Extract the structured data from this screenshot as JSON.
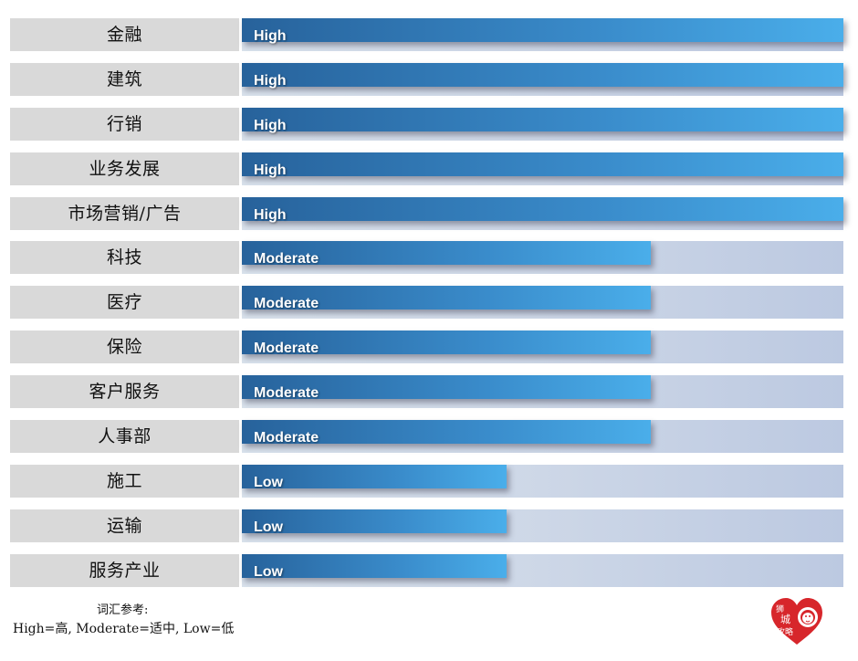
{
  "chart_data": {
    "type": "bar",
    "orientation": "horizontal",
    "title": "",
    "xlabel": "",
    "ylabel": "",
    "categories": [
      "金融",
      "建筑",
      "行销",
      "业务发展",
      "市场营销/广告",
      "科技",
      "医疗",
      "保险",
      "客户服务",
      "人事部",
      "施工",
      "运输",
      "服务产业"
    ],
    "levels": [
      "High",
      "High",
      "High",
      "High",
      "High",
      "Moderate",
      "Moderate",
      "Moderate",
      "Moderate",
      "Moderate",
      "Low",
      "Low",
      "Low"
    ],
    "values": [
      100,
      100,
      100,
      100,
      100,
      68,
      68,
      68,
      68,
      68,
      44,
      44,
      44
    ],
    "xlim": [
      0,
      100
    ],
    "level_scale": {
      "High": 100,
      "Moderate": 68,
      "Low": 44
    },
    "grid": false,
    "legend": "none",
    "colors": {
      "bar_start": "#27629b",
      "bar_end": "#4aaeea",
      "track_start": "#d9e2ec",
      "track_end": "#bcc9e1",
      "label_bg": "#d9d9d9"
    }
  },
  "rows": [
    {
      "label": "金融",
      "level": "High"
    },
    {
      "label": "建筑",
      "level": "High"
    },
    {
      "label": "行销",
      "level": "High"
    },
    {
      "label": "业务发展",
      "level": "High"
    },
    {
      "label": "市场营销/广告",
      "level": "High"
    },
    {
      "label": "科技",
      "level": "Moderate"
    },
    {
      "label": "医疗",
      "level": "Moderate"
    },
    {
      "label": "保险",
      "level": "Moderate"
    },
    {
      "label": "客户服务",
      "level": "Moderate"
    },
    {
      "label": "人事部",
      "level": "Moderate"
    },
    {
      "label": "施工",
      "level": "Low"
    },
    {
      "label": "运输",
      "level": "Low"
    },
    {
      "label": "服务产业",
      "level": "Low"
    }
  ],
  "legend": {
    "title": "词汇参考:",
    "body": "High=高,  Moderate=适中, Low=低"
  },
  "logo": {
    "text": "狮城攻略",
    "color": "#d7262b"
  }
}
